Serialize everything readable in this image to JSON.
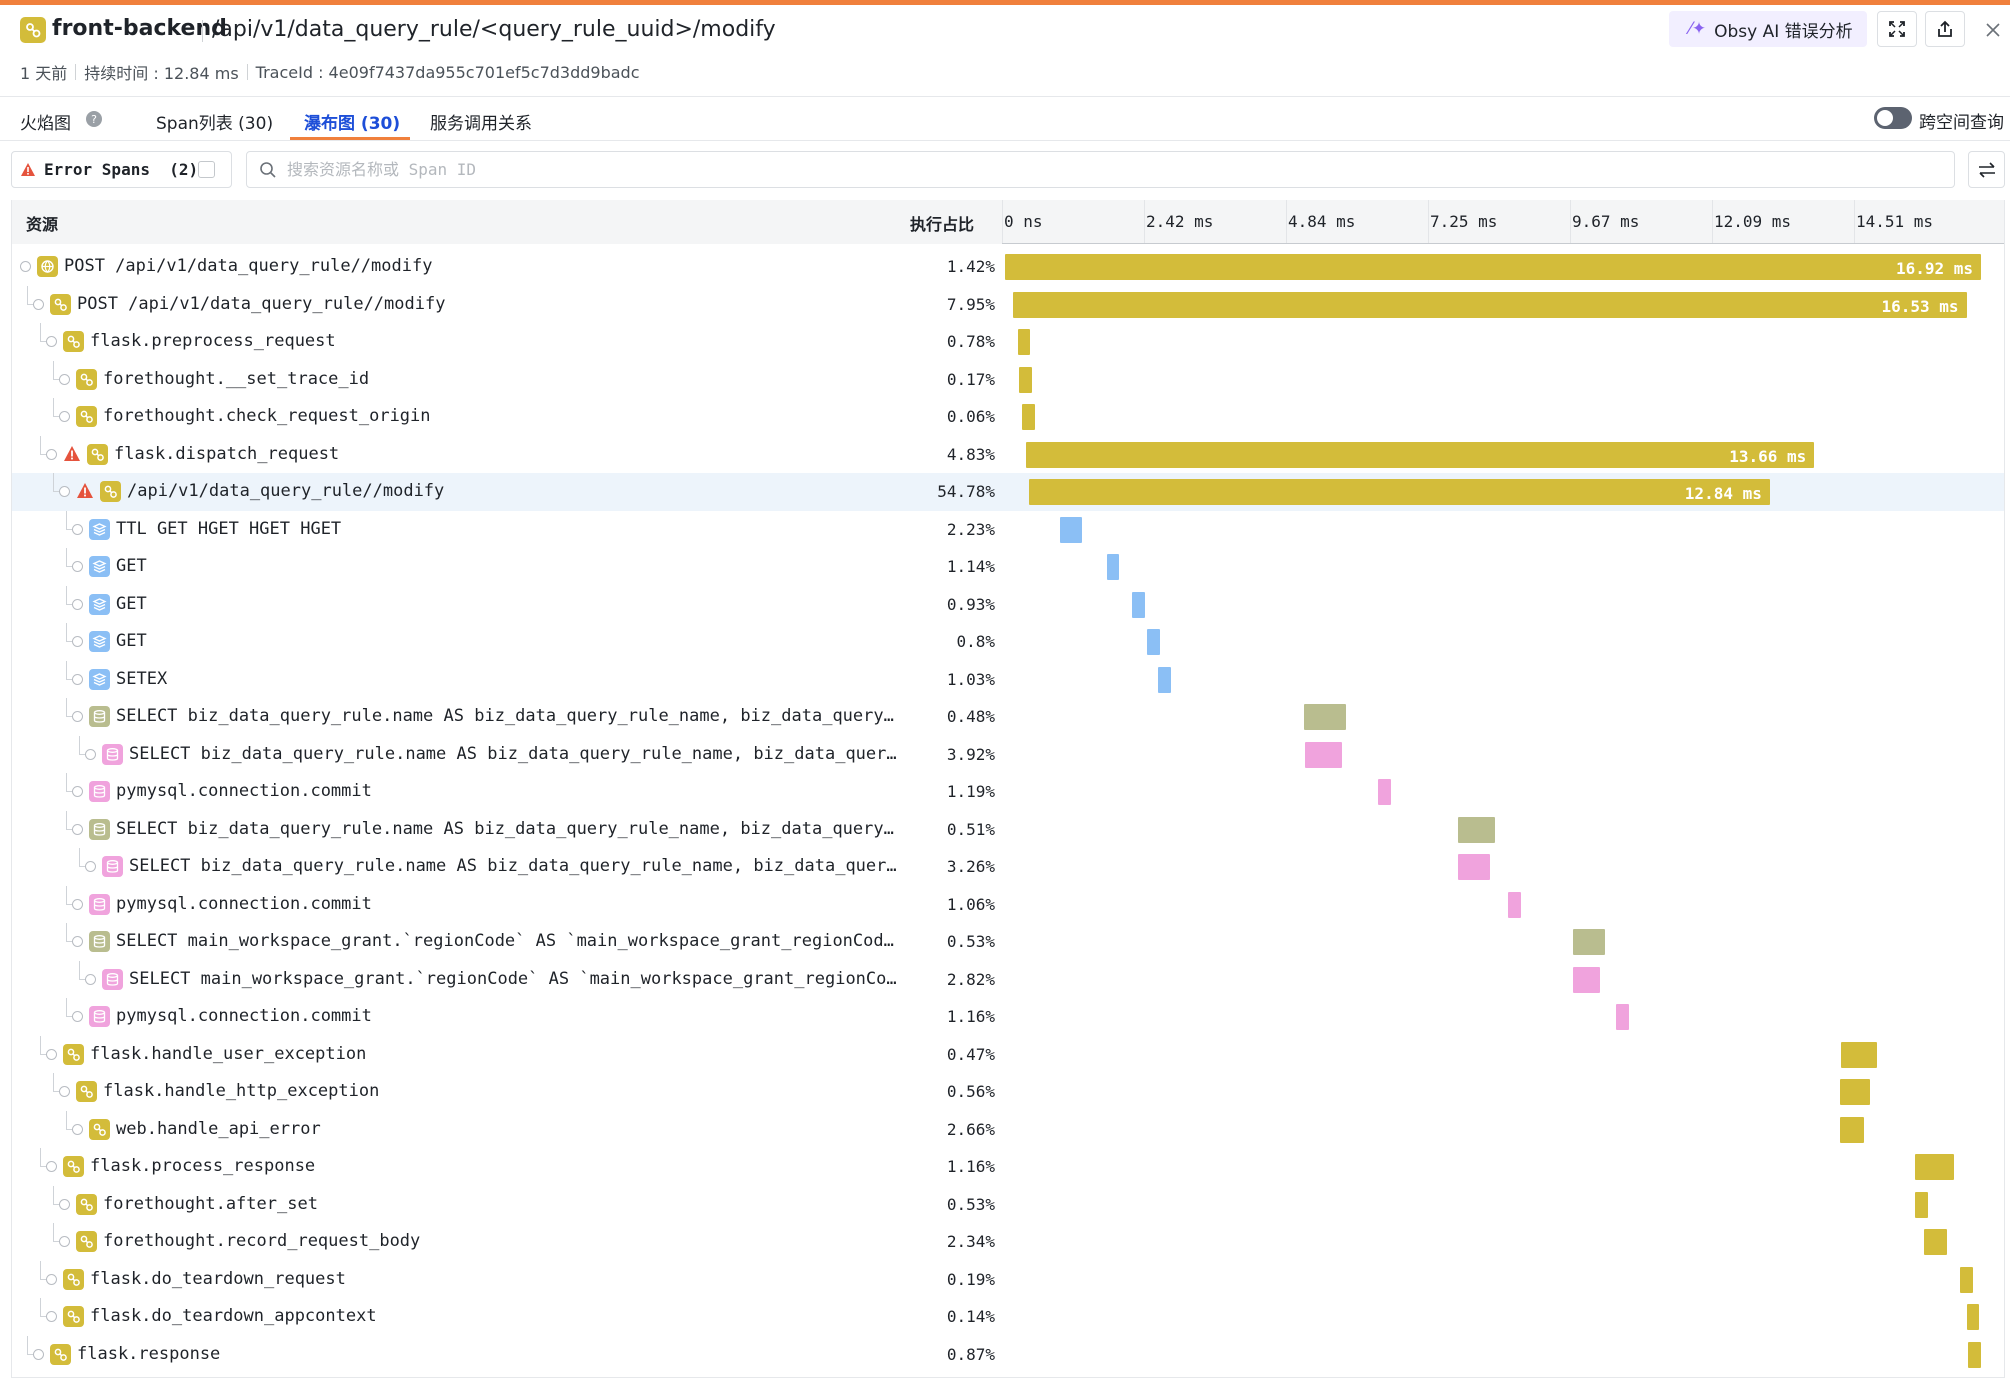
{
  "header": {
    "service": "front-backend",
    "endpoint": "/api/v1/data_query_rule/<query_rule_uuid>/modify",
    "ai_button_label": "Obsy AI 错误分析",
    "icons": [
      "sparkle-icon",
      "fullscreen-icon",
      "share-icon",
      "close-icon"
    ]
  },
  "meta": {
    "time_ago": "1 天前",
    "duration": "持续时间 : 12.84 ms",
    "trace_id": "TraceId : 4e09f7437da955c701ef5c7d3dd9badc"
  },
  "tabs": {
    "flame": "火焰图",
    "span_list": "Span列表 (30)",
    "waterfall": "瀑布图 (30)",
    "service_map": "服务调用关系",
    "active": "瀑布图 (30)",
    "cross_space_label": "跨空间查询",
    "cross_space_enabled": false
  },
  "filter": {
    "error_spans_label": "Error Spans  (2)",
    "error_spans_checked": false,
    "search_placeholder": "搜索资源名称或 Span ID",
    "search_value": ""
  },
  "colors": {
    "app": "#d3bc3a",
    "cache": "#8bbff5",
    "db_parent": "#b9bd8f",
    "db_child": "#f0a3dd",
    "error": "#e5533d",
    "selected_row": "#edf4fb",
    "tab_active": "#1d4ed8",
    "accent": "#f0803c"
  },
  "table": {
    "col_resource": "资源",
    "col_percent": "执行占比",
    "ticks": [
      "0 ns",
      "2.42 ms",
      "4.84 ms",
      "7.25 ms",
      "9.67 ms",
      "12.09 ms",
      "14.51 ms"
    ],
    "timeline_max_ms": 16.92,
    "rows": [
      {
        "name": "POST /api/v1/data_query_rule//modify",
        "pct": "1.42%",
        "depth": 0,
        "kind": "web",
        "error": false,
        "start": 0.0,
        "dur": 16.92,
        "label": "16.92 ms"
      },
      {
        "name": "POST /api/v1/data_query_rule//modify",
        "pct": "7.95%",
        "depth": 1,
        "kind": "app",
        "error": false,
        "start": 0.14,
        "dur": 16.53,
        "label": "16.53 ms"
      },
      {
        "name": "flask.preprocess_request",
        "pct": "0.78%",
        "depth": 2,
        "kind": "app",
        "error": false,
        "start": 0.22,
        "dur": 0.21
      },
      {
        "name": "forethought.__set_trace_id",
        "pct": "0.17%",
        "depth": 3,
        "kind": "app",
        "error": false,
        "start": 0.25,
        "dur": 0.22
      },
      {
        "name": "forethought.check_request_origin",
        "pct": "0.06%",
        "depth": 3,
        "kind": "app",
        "error": false,
        "start": 0.3,
        "dur": 0.22
      },
      {
        "name": "flask.dispatch_request",
        "pct": "4.83%",
        "depth": 2,
        "kind": "app",
        "error": true,
        "start": 0.37,
        "dur": 13.66,
        "label": "13.66 ms"
      },
      {
        "name": "/api/v1/data_query_rule//modify",
        "pct": "54.78%",
        "depth": 3,
        "kind": "app",
        "error": true,
        "selected": true,
        "start": 0.42,
        "dur": 12.84,
        "label": "12.84 ms"
      },
      {
        "name": "TTL GET HGET HGET HGET",
        "pct": "2.23%",
        "depth": 4,
        "kind": "cache",
        "error": false,
        "start": 0.96,
        "dur": 0.37
      },
      {
        "name": "GET",
        "pct": "1.14%",
        "depth": 4,
        "kind": "cache",
        "error": false,
        "start": 1.76,
        "dur": 0.22
      },
      {
        "name": "GET",
        "pct": "0.93%",
        "depth": 4,
        "kind": "cache",
        "error": false,
        "start": 2.2,
        "dur": 0.22
      },
      {
        "name": "GET",
        "pct": "0.8%",
        "depth": 4,
        "kind": "cache",
        "error": false,
        "start": 2.46,
        "dur": 0.22
      },
      {
        "name": "SETEX",
        "pct": "1.03%",
        "depth": 4,
        "kind": "cache",
        "error": false,
        "start": 2.66,
        "dur": 0.22
      },
      {
        "name": "SELECT biz_data_query_rule.name AS biz_data_query_rule_name, biz_data_query_rule.uuid AS biz_data_query_rule_uuid",
        "pct": "0.48%",
        "depth": 4,
        "kind": "db_parent",
        "error": false,
        "start": 5.18,
        "dur": 0.73
      },
      {
        "name": "SELECT biz_data_query_rule.name AS biz_data_query_rule_name, biz_data_query_rule.uuid AS biz_data_query_rule_uuid",
        "pct": "3.92%",
        "depth": 5,
        "kind": "db_child",
        "error": false,
        "start": 5.2,
        "dur": 0.64
      },
      {
        "name": "pymysql.connection.commit",
        "pct": "1.19%",
        "depth": 4,
        "kind": "db_child",
        "error": false,
        "start": 6.47,
        "dur": 0.22
      },
      {
        "name": "SELECT biz_data_query_rule.name AS biz_data_query_rule_name, biz_data_query_rule.uuid AS biz_data_query_rule_uuid",
        "pct": "0.51%",
        "depth": 4,
        "kind": "db_parent",
        "error": false,
        "start": 7.86,
        "dur": 0.64
      },
      {
        "name": "SELECT biz_data_query_rule.name AS biz_data_query_rule_name, biz_data_query_rule.uuid AS biz_data_query_rule_uuid",
        "pct": "3.26%",
        "depth": 5,
        "kind": "db_child",
        "error": false,
        "start": 7.86,
        "dur": 0.55
      },
      {
        "name": "pymysql.connection.commit",
        "pct": "1.06%",
        "depth": 4,
        "kind": "db_child",
        "error": false,
        "start": 8.72,
        "dur": 0.22
      },
      {
        "name": "SELECT main_workspace_grant.`regionCode` AS `main_workspace_grant_regionCode`, main_workspace_grant.uuid",
        "pct": "0.53%",
        "depth": 4,
        "kind": "db_parent",
        "error": false,
        "start": 9.85,
        "dur": 0.55
      },
      {
        "name": "SELECT main_workspace_grant.`regionCode` AS `main_workspace_grant_regionCode`, main_workspace_grant.uuid",
        "pct": "2.82%",
        "depth": 5,
        "kind": "db_child",
        "error": false,
        "start": 9.85,
        "dur": 0.46
      },
      {
        "name": "pymysql.connection.commit",
        "pct": "1.16%",
        "depth": 4,
        "kind": "db_child",
        "error": false,
        "start": 10.6,
        "dur": 0.22
      },
      {
        "name": "flask.handle_user_exception",
        "pct": "0.47%",
        "depth": 2,
        "kind": "app",
        "error": false,
        "start": 14.49,
        "dur": 0.62
      },
      {
        "name": "flask.handle_http_exception",
        "pct": "0.56%",
        "depth": 3,
        "kind": "app",
        "error": false,
        "start": 14.47,
        "dur": 0.53
      },
      {
        "name": "web.handle_api_error",
        "pct": "2.66%",
        "depth": 4,
        "kind": "app",
        "error": false,
        "start": 14.47,
        "dur": 0.42
      },
      {
        "name": "flask.process_response",
        "pct": "1.16%",
        "depth": 2,
        "kind": "app",
        "error": false,
        "start": 15.78,
        "dur": 0.68
      },
      {
        "name": "forethought.after_set",
        "pct": "0.53%",
        "depth": 3,
        "kind": "app",
        "error": false,
        "start": 15.78,
        "dur": 0.22
      },
      {
        "name": "forethought.record_request_body",
        "pct": "2.34%",
        "depth": 3,
        "kind": "app",
        "error": false,
        "start": 15.93,
        "dur": 0.4
      },
      {
        "name": "flask.do_teardown_request",
        "pct": "0.19%",
        "depth": 2,
        "kind": "app",
        "error": false,
        "start": 16.56,
        "dur": 0.22
      },
      {
        "name": "flask.do_teardown_appcontext",
        "pct": "0.14%",
        "depth": 2,
        "kind": "app",
        "error": false,
        "start": 16.67,
        "dur": 0.22
      },
      {
        "name": "flask.response",
        "pct": "0.87%",
        "depth": 1,
        "kind": "app",
        "error": false,
        "start": 16.7,
        "dur": 0.22
      }
    ]
  }
}
